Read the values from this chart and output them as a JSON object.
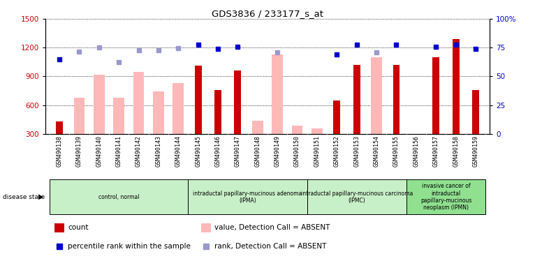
{
  "title": "GDS3836 / 233177_s_at",
  "samples": [
    "GSM490138",
    "GSM490139",
    "GSM490140",
    "GSM490141",
    "GSM490142",
    "GSM490143",
    "GSM490144",
    "GSM490145",
    "GSM490146",
    "GSM490147",
    "GSM490148",
    "GSM490149",
    "GSM490150",
    "GSM490151",
    "GSM490152",
    "GSM490153",
    "GSM490154",
    "GSM490155",
    "GSM490156",
    "GSM490157",
    "GSM490158",
    "GSM490159"
  ],
  "count_values": [
    430,
    null,
    null,
    null,
    null,
    null,
    null,
    1010,
    760,
    960,
    null,
    null,
    null,
    null,
    650,
    1020,
    null,
    1020,
    null,
    1100,
    1290,
    760
  ],
  "absent_value_bars": [
    null,
    680,
    920,
    680,
    950,
    740,
    830,
    null,
    null,
    null,
    440,
    1130,
    390,
    360,
    null,
    null,
    1100,
    null,
    null,
    null,
    null,
    null
  ],
  "percentile_rank_present": [
    1075,
    null,
    null,
    null,
    null,
    null,
    null,
    1230,
    1185,
    1205,
    null,
    null,
    null,
    null,
    1130,
    1230,
    null,
    1230,
    null,
    1210,
    1230,
    1185
  ],
  "percentile_rank_absent": [
    null,
    1160,
    1200,
    1050,
    1175,
    1175,
    1195,
    null,
    null,
    null,
    null,
    1150,
    null,
    null,
    null,
    null,
    1150,
    null,
    null,
    null,
    null,
    null
  ],
  "ylim_left": [
    300,
    1500
  ],
  "ylim_right": [
    0,
    100
  ],
  "yticks_left": [
    300,
    600,
    900,
    1200,
    1500
  ],
  "yticks_right": [
    0,
    25,
    50,
    75,
    100
  ],
  "groups": [
    {
      "label": "control, normal",
      "start": 0,
      "end": 7
    },
    {
      "label": "intraductal papillary-mucinous adenoma\n(IPMA)",
      "start": 7,
      "end": 13
    },
    {
      "label": "intraductal papillary-mucinous carcinoma\n(IPMC)",
      "start": 13,
      "end": 18
    },
    {
      "label": "invasive cancer of\nintraductal\npapillary-mucinous\nneoplasm (IPMN)",
      "start": 18,
      "end": 22
    }
  ],
  "group_colors": [
    "#c8f0c8",
    "#c8f0c8",
    "#c8f0c8",
    "#90e090"
  ],
  "count_color": "#cc0000",
  "absent_value_color": "#ffb8b8",
  "present_rank_color": "#0000cc",
  "absent_rank_color": "#9999cc",
  "sample_bg_color": "#d8d8d8",
  "legend_items": [
    {
      "label": "count",
      "color": "#cc0000",
      "type": "bar"
    },
    {
      "label": "percentile rank within the sample",
      "color": "#0000cc",
      "type": "marker"
    },
    {
      "label": "value, Detection Call = ABSENT",
      "color": "#ffb8b8",
      "type": "bar"
    },
    {
      "label": "rank, Detection Call = ABSENT",
      "color": "#9999cc",
      "type": "marker"
    }
  ]
}
